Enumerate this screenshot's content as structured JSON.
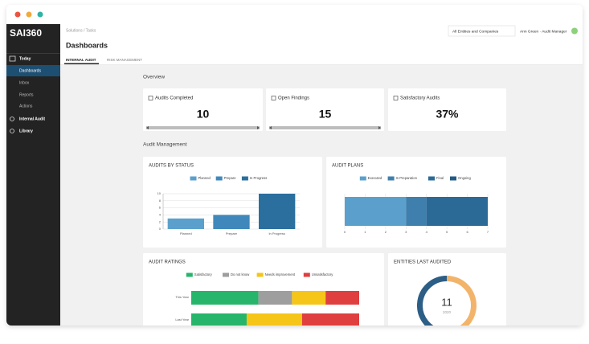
{
  "sidebar": {
    "logo": "SAI360",
    "nav": [
      "Today",
      "Dashboards",
      "Inbox",
      "Reports",
      "Actions",
      "Internal Audit",
      "Library"
    ]
  },
  "header": {
    "breadcrumb": "Solutions / Tasks",
    "title": "Dashboards",
    "tabs": [
      "INTERNAL AUDIT",
      "RISK MANAGEMENT"
    ],
    "entity_selector": "All Entities and Companies",
    "user": "Ann Green · Audit Manager"
  },
  "overview": {
    "heading": "Overview",
    "cards": [
      {
        "label": "Audits Completed",
        "value": 10
      },
      {
        "label": "Open Findings",
        "value": 15
      },
      {
        "label": "Satisfactory Audits",
        "value": 37,
        "value_label": "37%"
      }
    ]
  },
  "management": {
    "heading": "Audit Management"
  },
  "chart_data": [
    {
      "type": "bar",
      "title": "AUDITS BY STATUS",
      "categories": [
        "Planned",
        "Prepare",
        "In Progress"
      ],
      "values": [
        3,
        4,
        10
      ],
      "colors": [
        "#5ba0cc",
        "#4088bb",
        "#2b6f9e"
      ],
      "ylim": [
        0,
        10
      ],
      "yticks": [
        0,
        2,
        4,
        6,
        8,
        10
      ],
      "grid": true
    },
    {
      "type": "stacked_bar_h",
      "title": "AUDIT PLANS",
      "series": [
        {
          "name": "Executed",
          "color": "#5ba0cc",
          "values": [
            3
          ]
        },
        {
          "name": "In Preparation",
          "color": "#3f7fae",
          "values": [
            1
          ]
        },
        {
          "name": "Final",
          "color": "#2b6a96",
          "values": [
            3
          ]
        },
        {
          "name": "Ongoing",
          "color": "#235b84",
          "values": [
            0
          ]
        }
      ],
      "xlim": [
        0,
        7
      ],
      "xticks": [
        0,
        1,
        2,
        3,
        4,
        5,
        6,
        7
      ],
      "grid": true
    },
    {
      "type": "stacked_bar_h",
      "title": "AUDIT RATINGS",
      "categories": [
        "This Year",
        "Last Year"
      ],
      "series": [
        {
          "name": "Satisfactory",
          "color": "#27b56b",
          "values": [
            40,
            33
          ]
        },
        {
          "name": "Do not know",
          "color": "#9e9e9e",
          "values": [
            20,
            0
          ]
        },
        {
          "name": "Needs improvement",
          "color": "#f5c518",
          "values": [
            20,
            33
          ]
        },
        {
          "name": "Unsatisfactory",
          "color": "#df3f3f",
          "values": [
            20,
            34
          ]
        }
      ]
    },
    {
      "type": "donut",
      "title": "ENTITIES LAST AUDITED",
      "center_value": 11,
      "center_label": "2020",
      "segments": [
        {
          "color": "#f2b46b",
          "value": 52
        },
        {
          "color": "#2c5e86",
          "value": 48
        }
      ]
    }
  ]
}
